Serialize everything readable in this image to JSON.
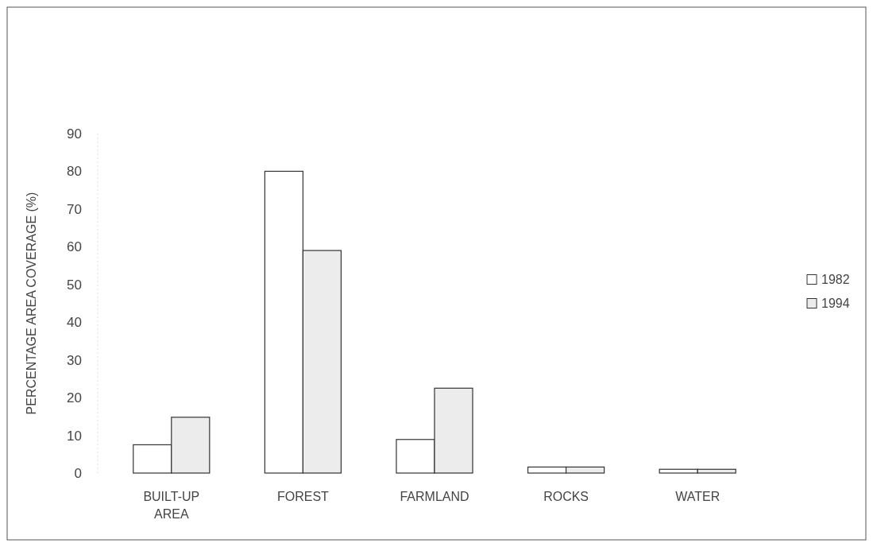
{
  "chart_data": {
    "type": "bar",
    "ylabel": "PERCENTAGE AREA COVERAGE (%)",
    "categories": [
      "BUILT-UP AREA",
      "FOREST",
      "FARMLAND",
      "ROCKS",
      "WATER"
    ],
    "series": [
      {
        "name": "1982",
        "color": "#ffffff",
        "values": [
          7.5,
          80,
          8.9,
          1.6,
          1.0
        ]
      },
      {
        "name": "1994",
        "color": "#ececec",
        "values": [
          14.8,
          59,
          22.5,
          1.6,
          1.0
        ]
      }
    ],
    "ylim": [
      0,
      90
    ],
    "yticks": [
      0,
      10,
      20,
      30,
      40,
      50,
      60,
      70,
      80,
      90
    ],
    "legend": "right"
  }
}
